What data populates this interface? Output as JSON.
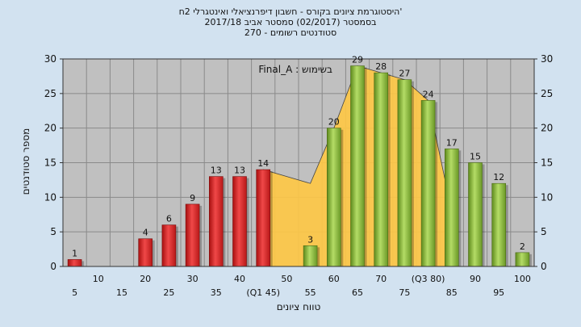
{
  "chart_data": {
    "type": "bar",
    "title_lines": [
      "'היסטוגרמת ציונים בקורס - חשבון דיפרנציאלי ואינטגרלי 2ח",
      "בסמסטר  (02/2017)  סמסטר אביב 2017/18",
      "סטודנטים רשומים - 270"
    ],
    "xlabel": "טווח ציונים",
    "ylabel": "מספר סטודנטים",
    "ylim": [
      0,
      30
    ],
    "yticks": [
      0,
      5,
      10,
      15,
      20,
      25,
      30
    ],
    "grid": true,
    "categories": [
      "5",
      "10",
      "15",
      "20",
      "25",
      "30",
      "35",
      "40",
      "45",
      "50",
      "55",
      "60",
      "65",
      "70",
      "75",
      "80",
      "85",
      "90",
      "95",
      "100"
    ],
    "x_tick_labels": [
      "5",
      "10",
      "15",
      "20",
      "25",
      "30",
      "35",
      "40",
      "(Q1 45)",
      "50",
      "55",
      "60",
      "65",
      "70",
      "75",
      "(Q3 80)",
      "85",
      "90",
      "95",
      "100"
    ],
    "values": [
      1,
      0,
      0,
      4,
      6,
      9,
      13,
      13,
      14,
      null,
      3,
      20,
      29,
      28,
      27,
      24,
      17,
      15,
      12,
      2
    ],
    "data_labels": [
      "1",
      "",
      "",
      "4",
      "6",
      "9",
      "13",
      "13",
      "14",
      "",
      "3",
      "20",
      "29",
      "28",
      "27",
      "24",
      "17",
      "15",
      "12",
      "2"
    ],
    "bar_colors": [
      "red",
      "red",
      "red",
      "red",
      "red",
      "red",
      "red",
      "red",
      "red",
      "none",
      "green",
      "green",
      "green",
      "green",
      "green",
      "green",
      "green",
      "green",
      "green",
      "green"
    ],
    "area_series": {
      "values": [
        null,
        null,
        null,
        null,
        null,
        null,
        null,
        null,
        14,
        13,
        12,
        20,
        29,
        28,
        27,
        24,
        8,
        null,
        null,
        null
      ]
    },
    "annotation": "Final_A : בשימוש",
    "colors": {
      "red": "#e03030",
      "green": "#8ec040",
      "area": "#ffc844",
      "plot_bg": "#c0c0c0",
      "page_bg": "#d2e2f0"
    }
  }
}
